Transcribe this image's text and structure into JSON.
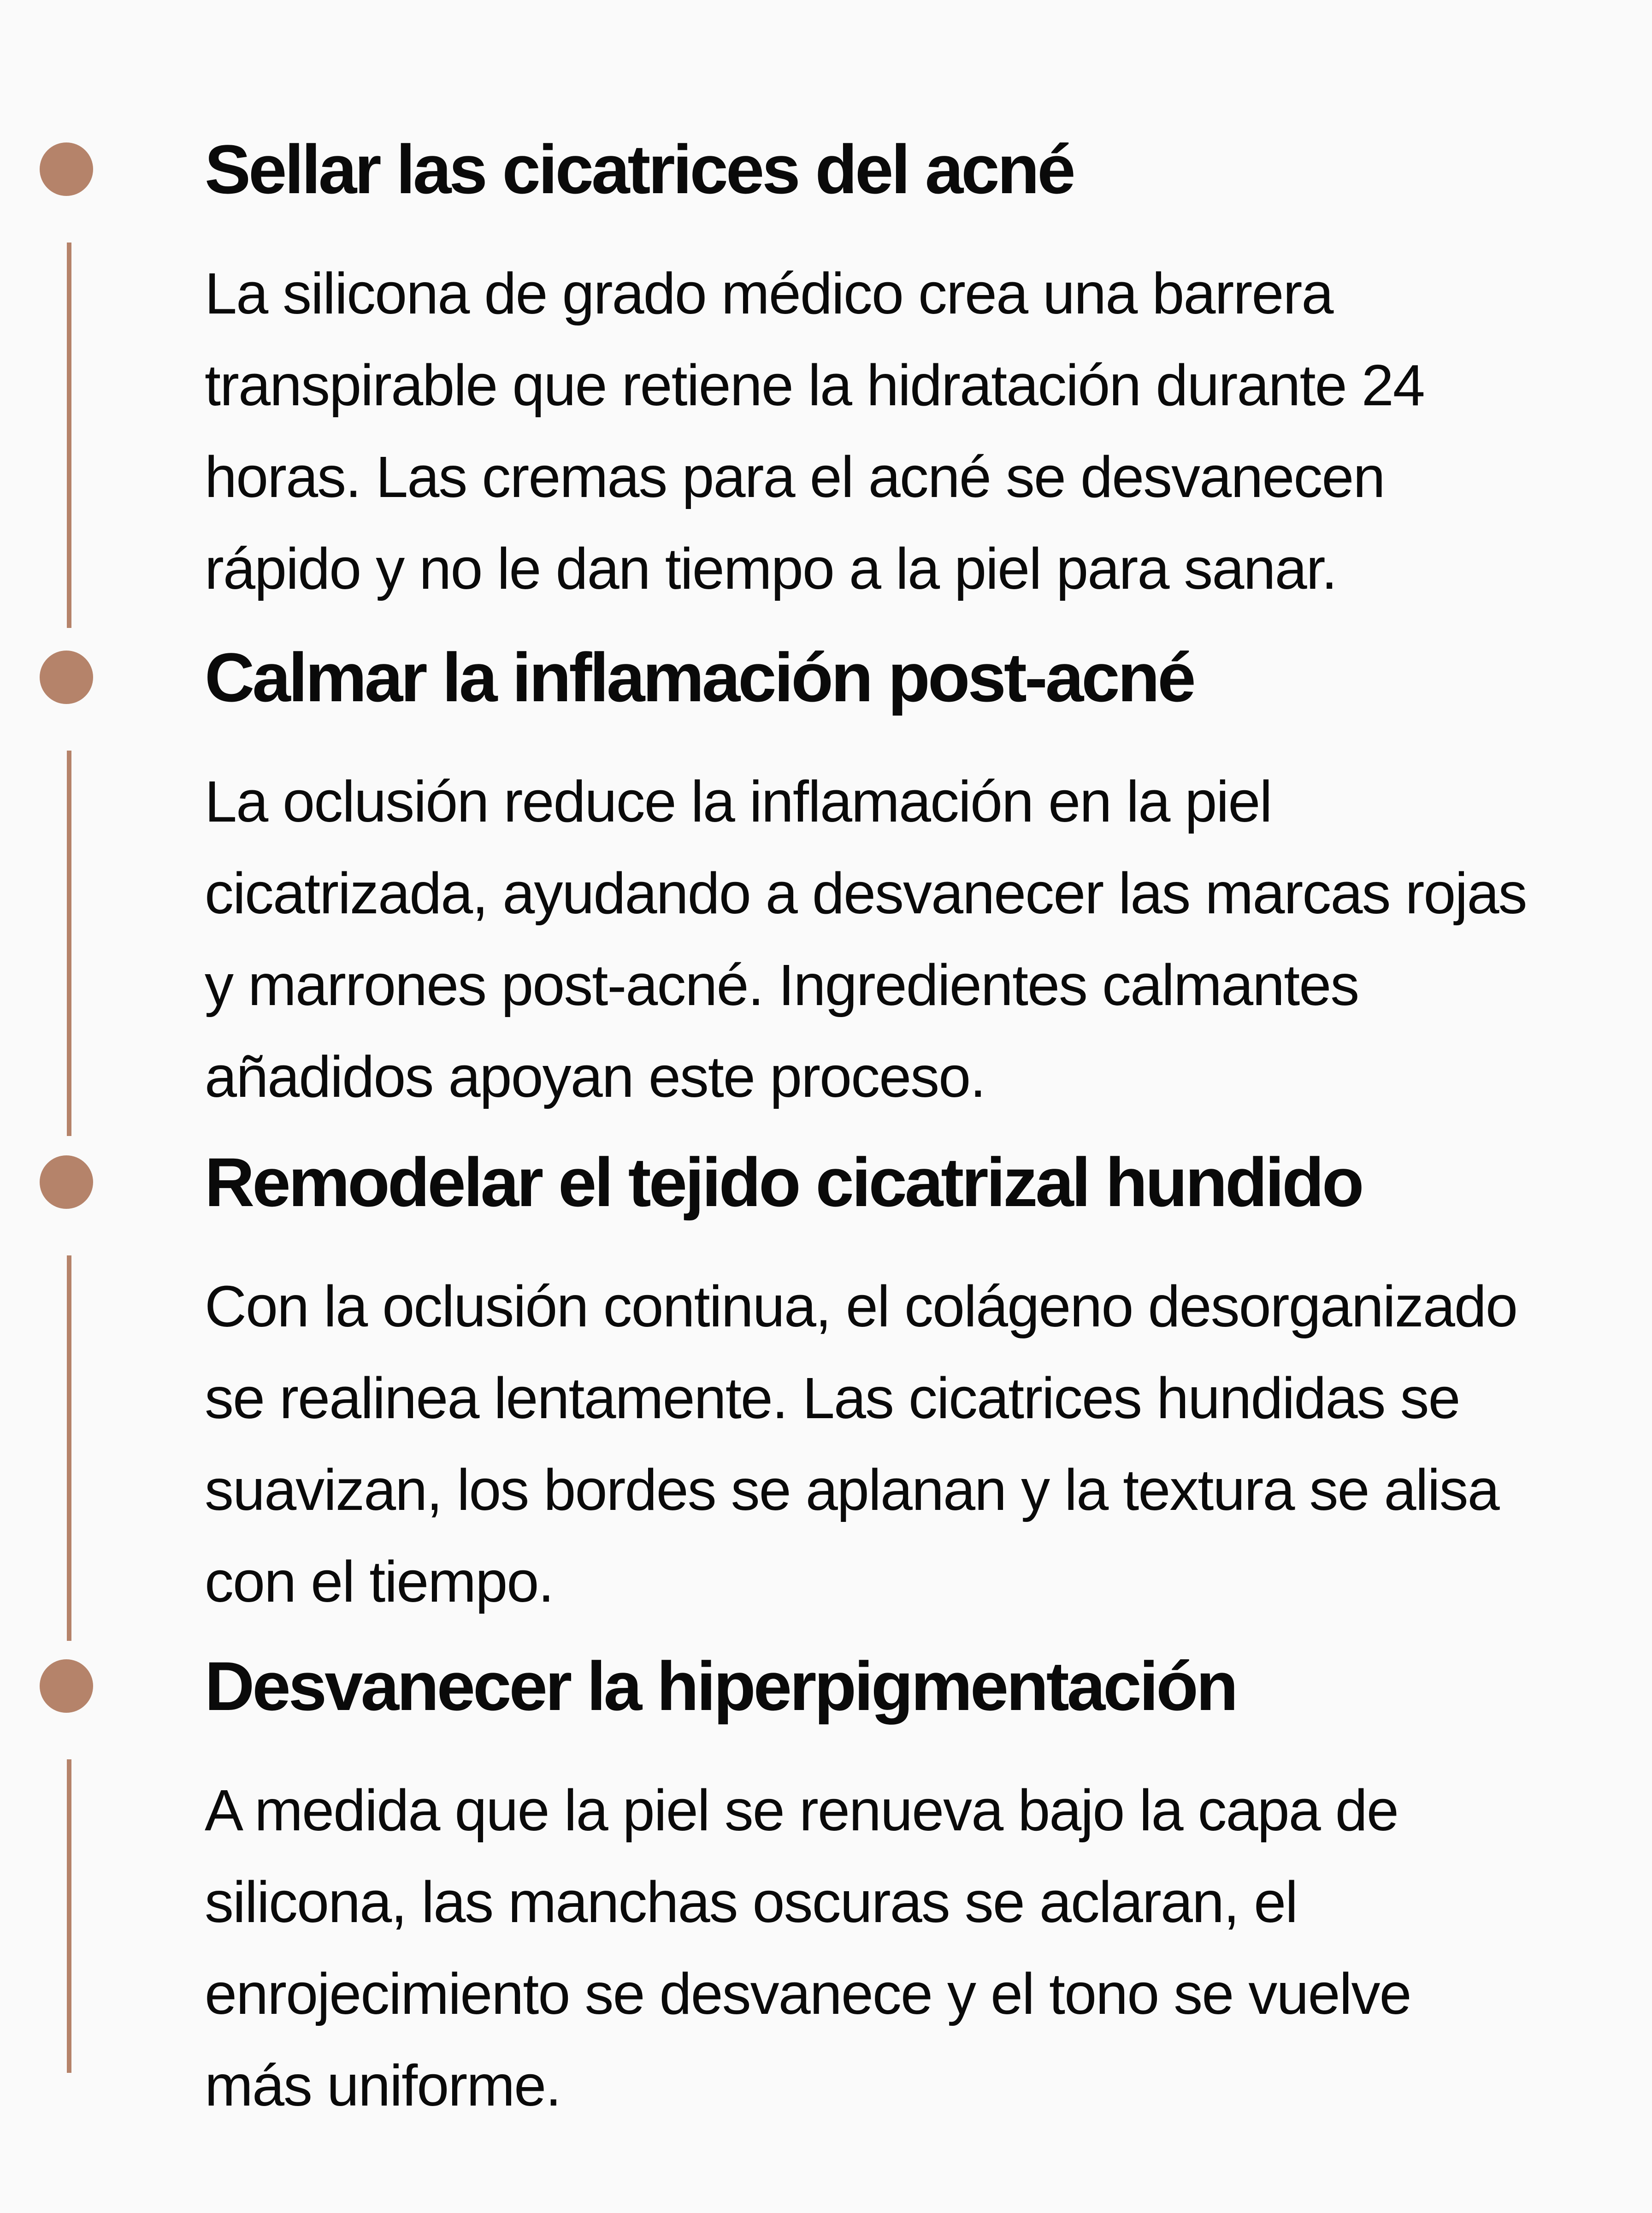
{
  "colors": {
    "accent": "#b5836a",
    "background": "#fafafa",
    "text": "#0a0a0a"
  },
  "sections": [
    {
      "title": "Sellar las cicatrices del acné",
      "lines": [
        "La silicona de grado médico crea una barrera",
        "transpirable que retiene la hidratación durante 24",
        "horas. Las cremas para el acné se desvanecen",
        "rápido y no le dan tiempo a la piel para sanar."
      ]
    },
    {
      "title": "Calmar la inflamación post-acné",
      "lines": [
        "La oclusión reduce la inflamación en la piel",
        "cicatrizada, ayudando a desvanecer las marcas rojas",
        "y marrones post-acné. Ingredientes calmantes",
        "añadidos apoyan este proceso."
      ]
    },
    {
      "title": "Remodelar el tejido cicatrizal hundido",
      "lines": [
        "Con la oclusión continua, el colágeno desorganizado",
        "se realinea lentamente. Las cicatrices hundidas se",
        "suavizan, los bordes se aplanan y la textura se alisa",
        "con el tiempo."
      ]
    },
    {
      "title": "Desvanecer la hiperpigmentación",
      "lines": [
        "A medida que la piel se renueva bajo la capa de",
        "silicona, las manchas oscuras se aclaran, el",
        "enrojecimiento se desvanece y el tono se vuelve",
        "más uniforme."
      ]
    }
  ]
}
